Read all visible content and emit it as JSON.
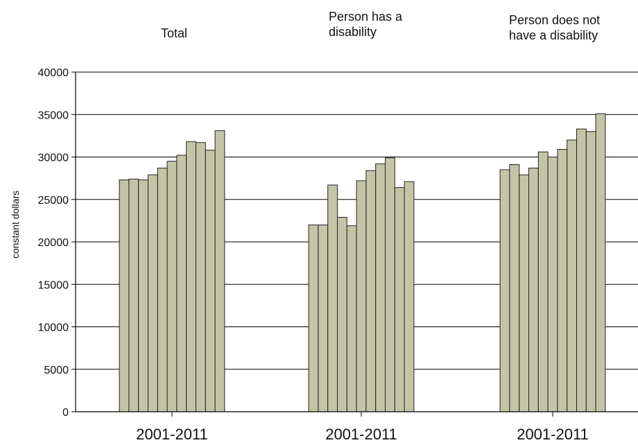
{
  "chart_data": {
    "type": "bar",
    "title": "",
    "xlabel": "",
    "ylabel": "constant dollars",
    "ylim": [
      0,
      40000
    ],
    "yticks": [
      0,
      5000,
      10000,
      15000,
      20000,
      25000,
      30000,
      35000,
      40000
    ],
    "grid": true,
    "legend": "none",
    "bar_color": "#c4c5a6",
    "bar_edge_color": "#222222",
    "groups": [
      {
        "title": "Total",
        "category_label": "2001-2011",
        "values": [
          27300,
          27400,
          27300,
          27900,
          28700,
          29500,
          30200,
          31800,
          31700,
          30800,
          33100
        ]
      },
      {
        "title": "Person has a\ndisability",
        "category_label": "2001-2011",
        "values": [
          22000,
          22000,
          26700,
          22900,
          21900,
          27200,
          28400,
          29200,
          29900,
          26400,
          27100
        ]
      },
      {
        "title": "Person does not\nhave a disability",
        "category_label": "2001-2011",
        "values": [
          28500,
          29100,
          27900,
          28700,
          30600,
          30000,
          30900,
          32000,
          33300,
          33000,
          35100
        ]
      }
    ]
  }
}
